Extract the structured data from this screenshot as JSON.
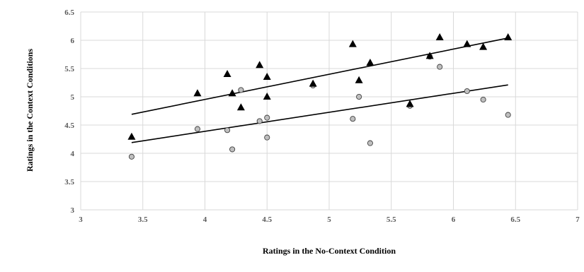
{
  "chart_data": {
    "type": "scatter",
    "xlabel": "Ratings in the No-Context Condition",
    "ylabel": "Ratings in the Context Conditions",
    "xlim": [
      3,
      7
    ],
    "ylim": [
      3,
      6.5
    ],
    "xticks": [
      "3",
      "3.5",
      "4",
      "4.5",
      "5",
      "5.5",
      "6",
      "6.5",
      "7"
    ],
    "yticks": [
      "3",
      "3.5",
      "4",
      "4.5",
      "5",
      "5.5",
      "6",
      "6.5"
    ],
    "grid": true,
    "legend": "none",
    "series": [
      {
        "marker": "triangle",
        "color": "#000000",
        "points": [
          [
            3.41,
            4.29
          ],
          [
            3.94,
            5.06
          ],
          [
            4.18,
            5.4
          ],
          [
            4.22,
            5.06
          ],
          [
            4.29,
            4.81
          ],
          [
            4.44,
            5.56
          ],
          [
            4.5,
            5.35
          ],
          [
            4.5,
            5.0
          ],
          [
            4.87,
            5.23
          ],
          [
            5.19,
            5.93
          ],
          [
            5.24,
            5.29
          ],
          [
            5.33,
            5.6
          ],
          [
            5.65,
            4.87
          ],
          [
            5.81,
            5.72
          ],
          [
            5.89,
            6.05
          ],
          [
            6.11,
            5.93
          ],
          [
            6.24,
            5.88
          ],
          [
            6.44,
            6.05
          ]
        ],
        "trendline": [
          [
            3.41,
            4.69
          ],
          [
            6.44,
            6.04
          ]
        ]
      },
      {
        "marker": "circle",
        "color": "#bfbfbf",
        "points": [
          [
            3.41,
            3.94
          ],
          [
            3.94,
            4.43
          ],
          [
            4.18,
            4.41
          ],
          [
            4.22,
            4.07
          ],
          [
            4.29,
            5.12
          ],
          [
            4.44,
            4.57
          ],
          [
            4.5,
            4.63
          ],
          [
            4.5,
            4.28
          ],
          [
            4.87,
            5.2
          ],
          [
            5.19,
            4.61
          ],
          [
            5.24,
            5.0
          ],
          [
            5.33,
            4.18
          ],
          [
            5.65,
            4.84
          ],
          [
            5.81,
            5.71
          ],
          [
            5.89,
            5.53
          ],
          [
            6.11,
            5.1
          ],
          [
            6.24,
            4.95
          ],
          [
            6.44,
            4.68
          ]
        ],
        "trendline": [
          [
            3.41,
            4.19
          ],
          [
            6.44,
            5.21
          ]
        ]
      }
    ]
  }
}
